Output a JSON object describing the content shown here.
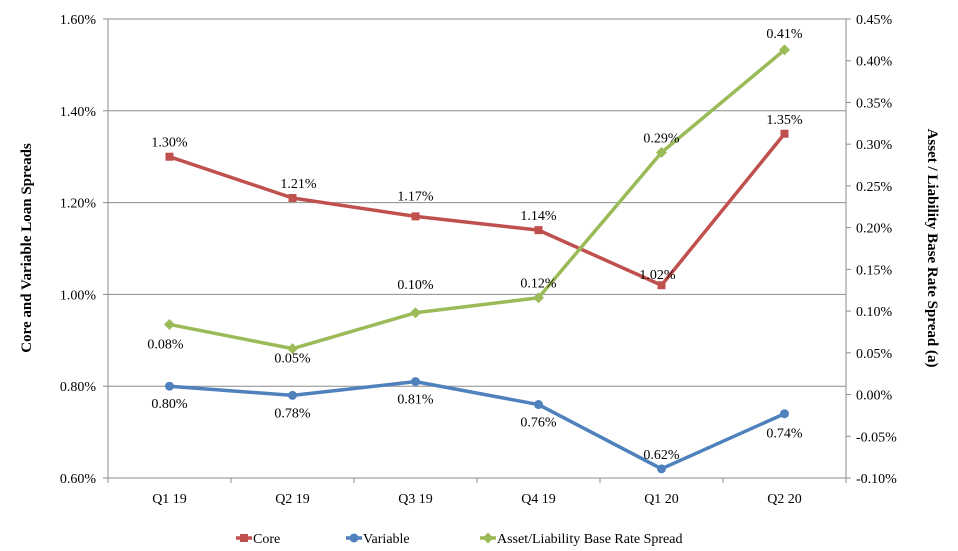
{
  "chart_data": {
    "type": "line",
    "categories": [
      "Q1 19",
      "Q2 19",
      "Q3 19",
      "Q4 19",
      "Q1 20",
      "Q2 20"
    ],
    "y_left": {
      "label": "Core and Variable Loan Spreads",
      "ylim": [
        0.6,
        1.6
      ],
      "ticks": [
        0.6,
        0.8,
        1.0,
        1.2,
        1.4,
        1.6
      ],
      "tick_labels": [
        "0.60%",
        "0.80%",
        "1.00%",
        "1.20%",
        "1.40%",
        "1.60%"
      ]
    },
    "y_right": {
      "label": "Asset / Liability Base Rate Spread (a)",
      "ylim": [
        -0.1,
        0.45
      ],
      "ticks": [
        -0.1,
        -0.05,
        0.0,
        0.05,
        0.1,
        0.15,
        0.2,
        0.25,
        0.3,
        0.35,
        0.4,
        0.45
      ],
      "tick_labels": [
        "-0.10%",
        "-0.05%",
        "0.00%",
        "0.05%",
        "0.10%",
        "0.15%",
        "0.20%",
        "0.25%",
        "0.30%",
        "0.35%",
        "0.40%",
        "0.45%"
      ]
    },
    "grid": true,
    "legend": "bottom",
    "series": [
      {
        "name": "Core",
        "axis": "left",
        "color": "#c0504d",
        "marker": "square",
        "values": [
          1.3,
          1.21,
          1.17,
          1.14,
          1.02,
          1.35
        ],
        "labels": [
          "1.30%",
          "1.21%",
          "1.17%",
          "1.14%",
          "1.02%",
          "1.35%"
        ]
      },
      {
        "name": "Variable",
        "axis": "left",
        "color": "#4f81bd",
        "marker": "circle",
        "values": [
          0.8,
          0.78,
          0.81,
          0.76,
          0.62,
          0.74
        ],
        "labels": [
          "0.80%",
          "0.78%",
          "0.81%",
          "0.76%",
          "0.62%",
          "0.74%"
        ]
      },
      {
        "name": "Asset/Liability Base Rate Spread",
        "axis": "right",
        "color": "#9bbb59",
        "marker": "diamond",
        "values": [
          0.084,
          0.055,
          0.098,
          0.116,
          0.29,
          0.413
        ],
        "labels": [
          "0.08%",
          "0.05%",
          "0.10%",
          "0.12%",
          "0.29%",
          "0.41%"
        ]
      }
    ]
  }
}
